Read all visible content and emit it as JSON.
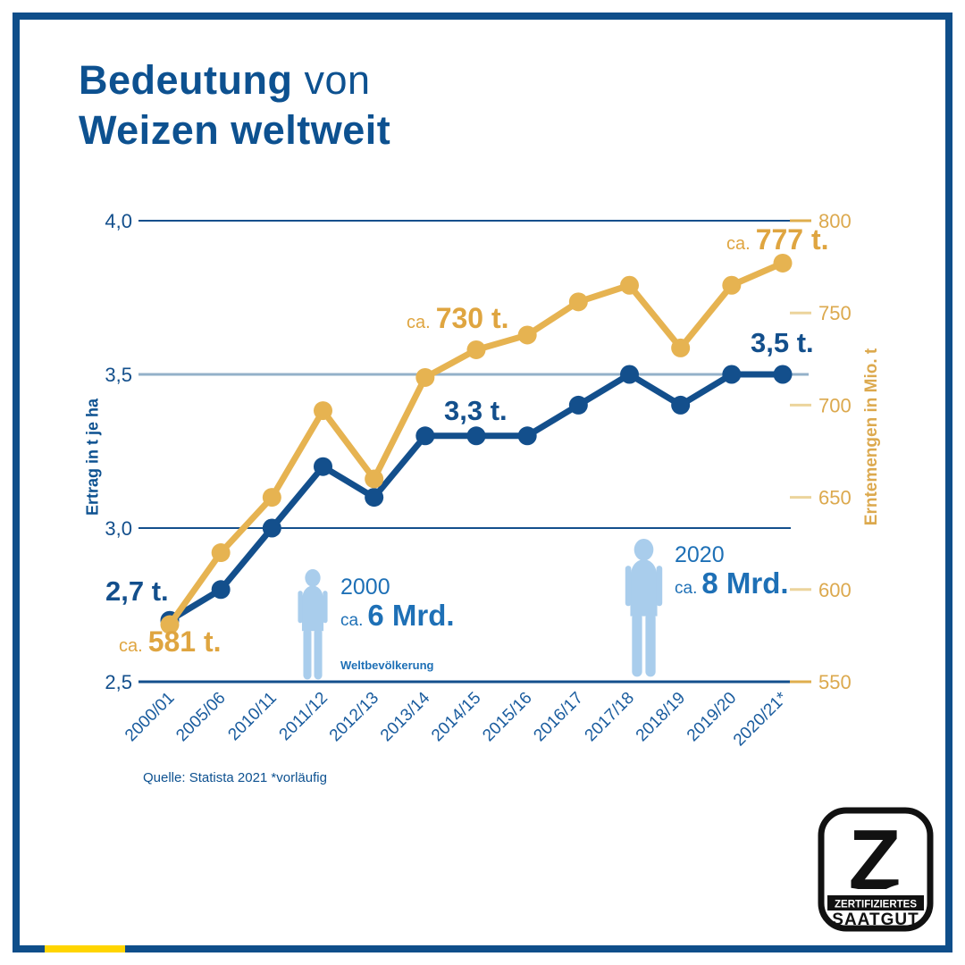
{
  "title": {
    "line1_bold": "Bedeutung",
    "line1_rest": "von",
    "line2": "Weizen weltweit"
  },
  "colors": {
    "navy": "#134f8c",
    "title_blue": "#0d5190",
    "gold_line": "#e6b351",
    "gold_text": "#dca94e",
    "light_grid": "#93b1c9",
    "pop_blue": "#1e70b6",
    "silhouette": "#a9cdec",
    "frame_navy": "#0f4e8a",
    "accent_yellow": "#ffd500"
  },
  "chart_data": {
    "type": "line",
    "categories": [
      "2000/01",
      "2005/06",
      "2010/11",
      "2011/12",
      "2012/13",
      "2013/14",
      "2014/15",
      "2015/16",
      "2016/17",
      "2017/18",
      "2018/19",
      "2019/20",
      "2020/21*"
    ],
    "series": [
      {
        "name": "Ertrag in t je ha",
        "axis": "left",
        "color": "#134f8c",
        "values": [
          2.7,
          2.8,
          3.0,
          3.2,
          3.1,
          3.3,
          3.3,
          3.3,
          3.4,
          3.5,
          3.4,
          3.5,
          3.5
        ]
      },
      {
        "name": "Erntemengen in Mio. t",
        "axis": "right",
        "color": "#e6b351",
        "values": [
          581,
          620,
          650,
          697,
          660,
          715,
          730,
          738,
          756,
          765,
          731,
          765,
          777
        ]
      }
    ],
    "left_axis": {
      "label": "Ertrag in t je ha",
      "min": 2.5,
      "max": 4.0,
      "ticks": [
        {
          "label": "4,0",
          "value": 4.0
        },
        {
          "label": "3,5",
          "value": 3.5
        },
        {
          "label": "3,0",
          "value": 3.0
        },
        {
          "label": "2,5",
          "value": 2.5
        }
      ]
    },
    "right_axis": {
      "label": "Erntemengen in Mio. t",
      "min": 550,
      "max": 800,
      "ticks": [
        {
          "label": "800",
          "value": 800
        },
        {
          "label": "750",
          "value": 750
        },
        {
          "label": "700",
          "value": 700
        },
        {
          "label": "650",
          "value": 650
        },
        {
          "label": "600",
          "value": 600
        },
        {
          "label": "550",
          "value": 550
        }
      ]
    },
    "grid": "horizontal",
    "legend": "none",
    "annotations": {
      "yield_start": "2,7 t.",
      "prod_start_prefix": "ca.",
      "prod_start": "581 t.",
      "yield_mid": "3,3 t.",
      "prod_mid_prefix": "ca.",
      "prod_mid": "730 t.",
      "yield_end": "3,5 t.",
      "prod_end_prefix": "ca.",
      "prod_end": "777 t."
    }
  },
  "population": {
    "caption": "Weltbevölkerung",
    "p2000": {
      "year": "2000",
      "prefix": "ca.",
      "value": "6 Mrd."
    },
    "p2020": {
      "year": "2020",
      "prefix": "ca.",
      "value": "8 Mrd."
    }
  },
  "source": "Quelle: Statista 2021 *vorläufig",
  "logo": {
    "letter": "Z",
    "band": "ZERTIFIZIERTES",
    "word": "SAATGUT"
  }
}
